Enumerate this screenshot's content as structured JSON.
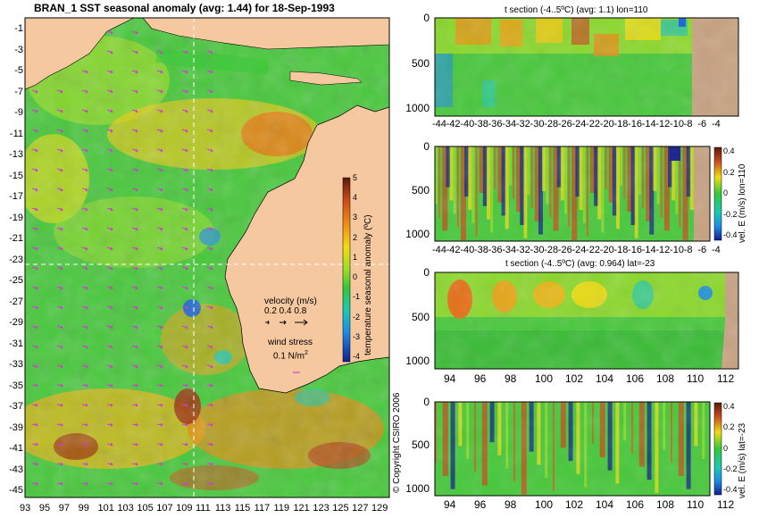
{
  "map": {
    "title": "BRAN_1  SST seasonal anomaly (avg: 1.44) for 18-Sep-1993",
    "lat_ticks": [
      "-1",
      "-3",
      "-5",
      "-7",
      "-9",
      "-11",
      "-13",
      "-15",
      "-17",
      "-19",
      "-21",
      "-23",
      "-25",
      "-27",
      "-29",
      "-31",
      "-33",
      "-35",
      "-37",
      "-39",
      "-41",
      "-43",
      "-45"
    ],
    "lon_ticks": [
      "93",
      "95",
      "97",
      "99",
      "101",
      "103",
      "105",
      "107",
      "109",
      "111",
      "113",
      "115",
      "117",
      "119",
      "121",
      "123",
      "125",
      "127",
      "129"
    ],
    "colorbar": {
      "label": "temperature seasonal anomaly (ºC)",
      "ticks": [
        "5",
        "4",
        "3",
        "2",
        "1",
        "0",
        "-1",
        "-2",
        "-3",
        "-4"
      ],
      "range": [
        -4,
        5
      ]
    },
    "legend": {
      "velocity_title": "velocity (m/s)",
      "velocity_values": "0.2 0.4 0.8",
      "wind_title": "wind stress",
      "wind_value": "0.1 N/m",
      "wind_exponent": "2"
    },
    "copyright": "© Copyright CSIRO 2006",
    "colors": {
      "land": "#f5c8a0",
      "ocean_mid": "#3cc83c",
      "warm": "#f0d010",
      "hot": "#c84a1e",
      "cool": "#1e8ce6",
      "arrows": "#d23cd2"
    }
  },
  "panels": [
    {
      "title": "t section (-4..5ºC) (avg: 1.1) lon=110",
      "x_ticks": [
        "-44",
        "-42",
        "-40",
        "-38",
        "-36",
        "-34",
        "-32",
        "-30",
        "-28",
        "-26",
        "-24",
        "-22",
        "-20",
        "-18",
        "-16",
        "-14",
        "-12",
        "-10",
        "-8",
        "-6",
        "-4"
      ],
      "y_ticks": [
        "0",
        "500",
        "1000"
      ],
      "colorbar": null
    },
    {
      "title": "",
      "x_ticks": [
        "-44",
        "-42",
        "-40",
        "-38",
        "-36",
        "-34",
        "-32",
        "-30",
        "-28",
        "-26",
        "-24",
        "-22",
        "-20",
        "-18",
        "-16",
        "-14",
        "-12",
        "-10",
        "-8",
        "-6",
        "-4"
      ],
      "y_ticks": [
        "0",
        "500",
        "1000"
      ],
      "colorbar": {
        "label": "vel. E (m/s) lon=110",
        "ticks": [
          "0.4",
          "0.2",
          "0",
          "-0.2",
          "-0.4"
        ]
      }
    },
    {
      "title": "t section (-4..5ºC) (avg: 0.964) lat=-23",
      "x_ticks": [
        "94",
        "96",
        "98",
        "100",
        "102",
        "104",
        "106",
        "108",
        "110",
        "112"
      ],
      "y_ticks": [
        "0",
        "500",
        "1000"
      ],
      "colorbar": null
    },
    {
      "title": "",
      "x_ticks": [
        "94",
        "96",
        "98",
        "100",
        "102",
        "104",
        "106",
        "108",
        "110",
        "112"
      ],
      "y_ticks": [
        "0",
        "500",
        "1000"
      ],
      "colorbar": {
        "label": "vel. E (m/s) lat=-23",
        "ticks": [
          "0.4",
          "0.2",
          "0",
          "-0.2",
          "-0.4"
        ]
      }
    }
  ]
}
